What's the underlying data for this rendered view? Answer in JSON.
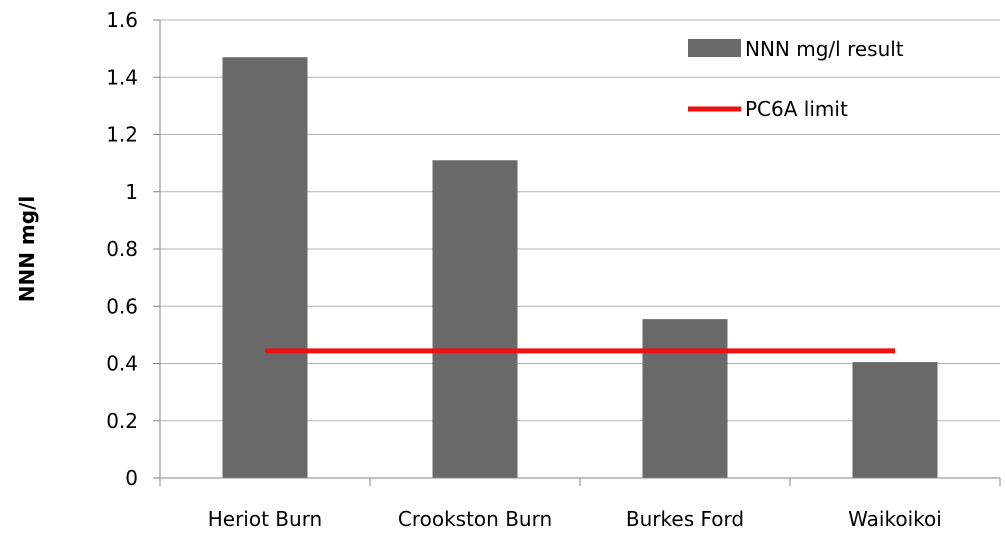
{
  "chart_data": {
    "type": "bar",
    "title": "",
    "xlabel": "",
    "ylabel": "NNN mg/l",
    "categories": [
      "Heriot Burn",
      "Crookston Burn",
      "Burkes Ford",
      "Waikoikoi"
    ],
    "series": [
      {
        "name": "NNN mg/l result",
        "kind": "bar",
        "color": "#696969",
        "values": [
          1.47,
          1.11,
          0.555,
          0.405
        ]
      },
      {
        "name": "PC6A limit",
        "kind": "line",
        "color": "#ee1111",
        "values": [
          0.444,
          0.444,
          0.444,
          0.444
        ]
      }
    ],
    "ylim": [
      0,
      1.6
    ],
    "yticks": [
      "0",
      "0.2",
      "0.4",
      "0.6",
      "0.8",
      "1",
      "1.2",
      "1.4",
      "1.6"
    ],
    "ytick_values": [
      0,
      0.2,
      0.4,
      0.6,
      0.8,
      1,
      1.2,
      1.4,
      1.6
    ],
    "grid": true,
    "legend_position": "top-right"
  },
  "colors": {
    "grid": "#b3b3b3",
    "axis": "#868686"
  }
}
